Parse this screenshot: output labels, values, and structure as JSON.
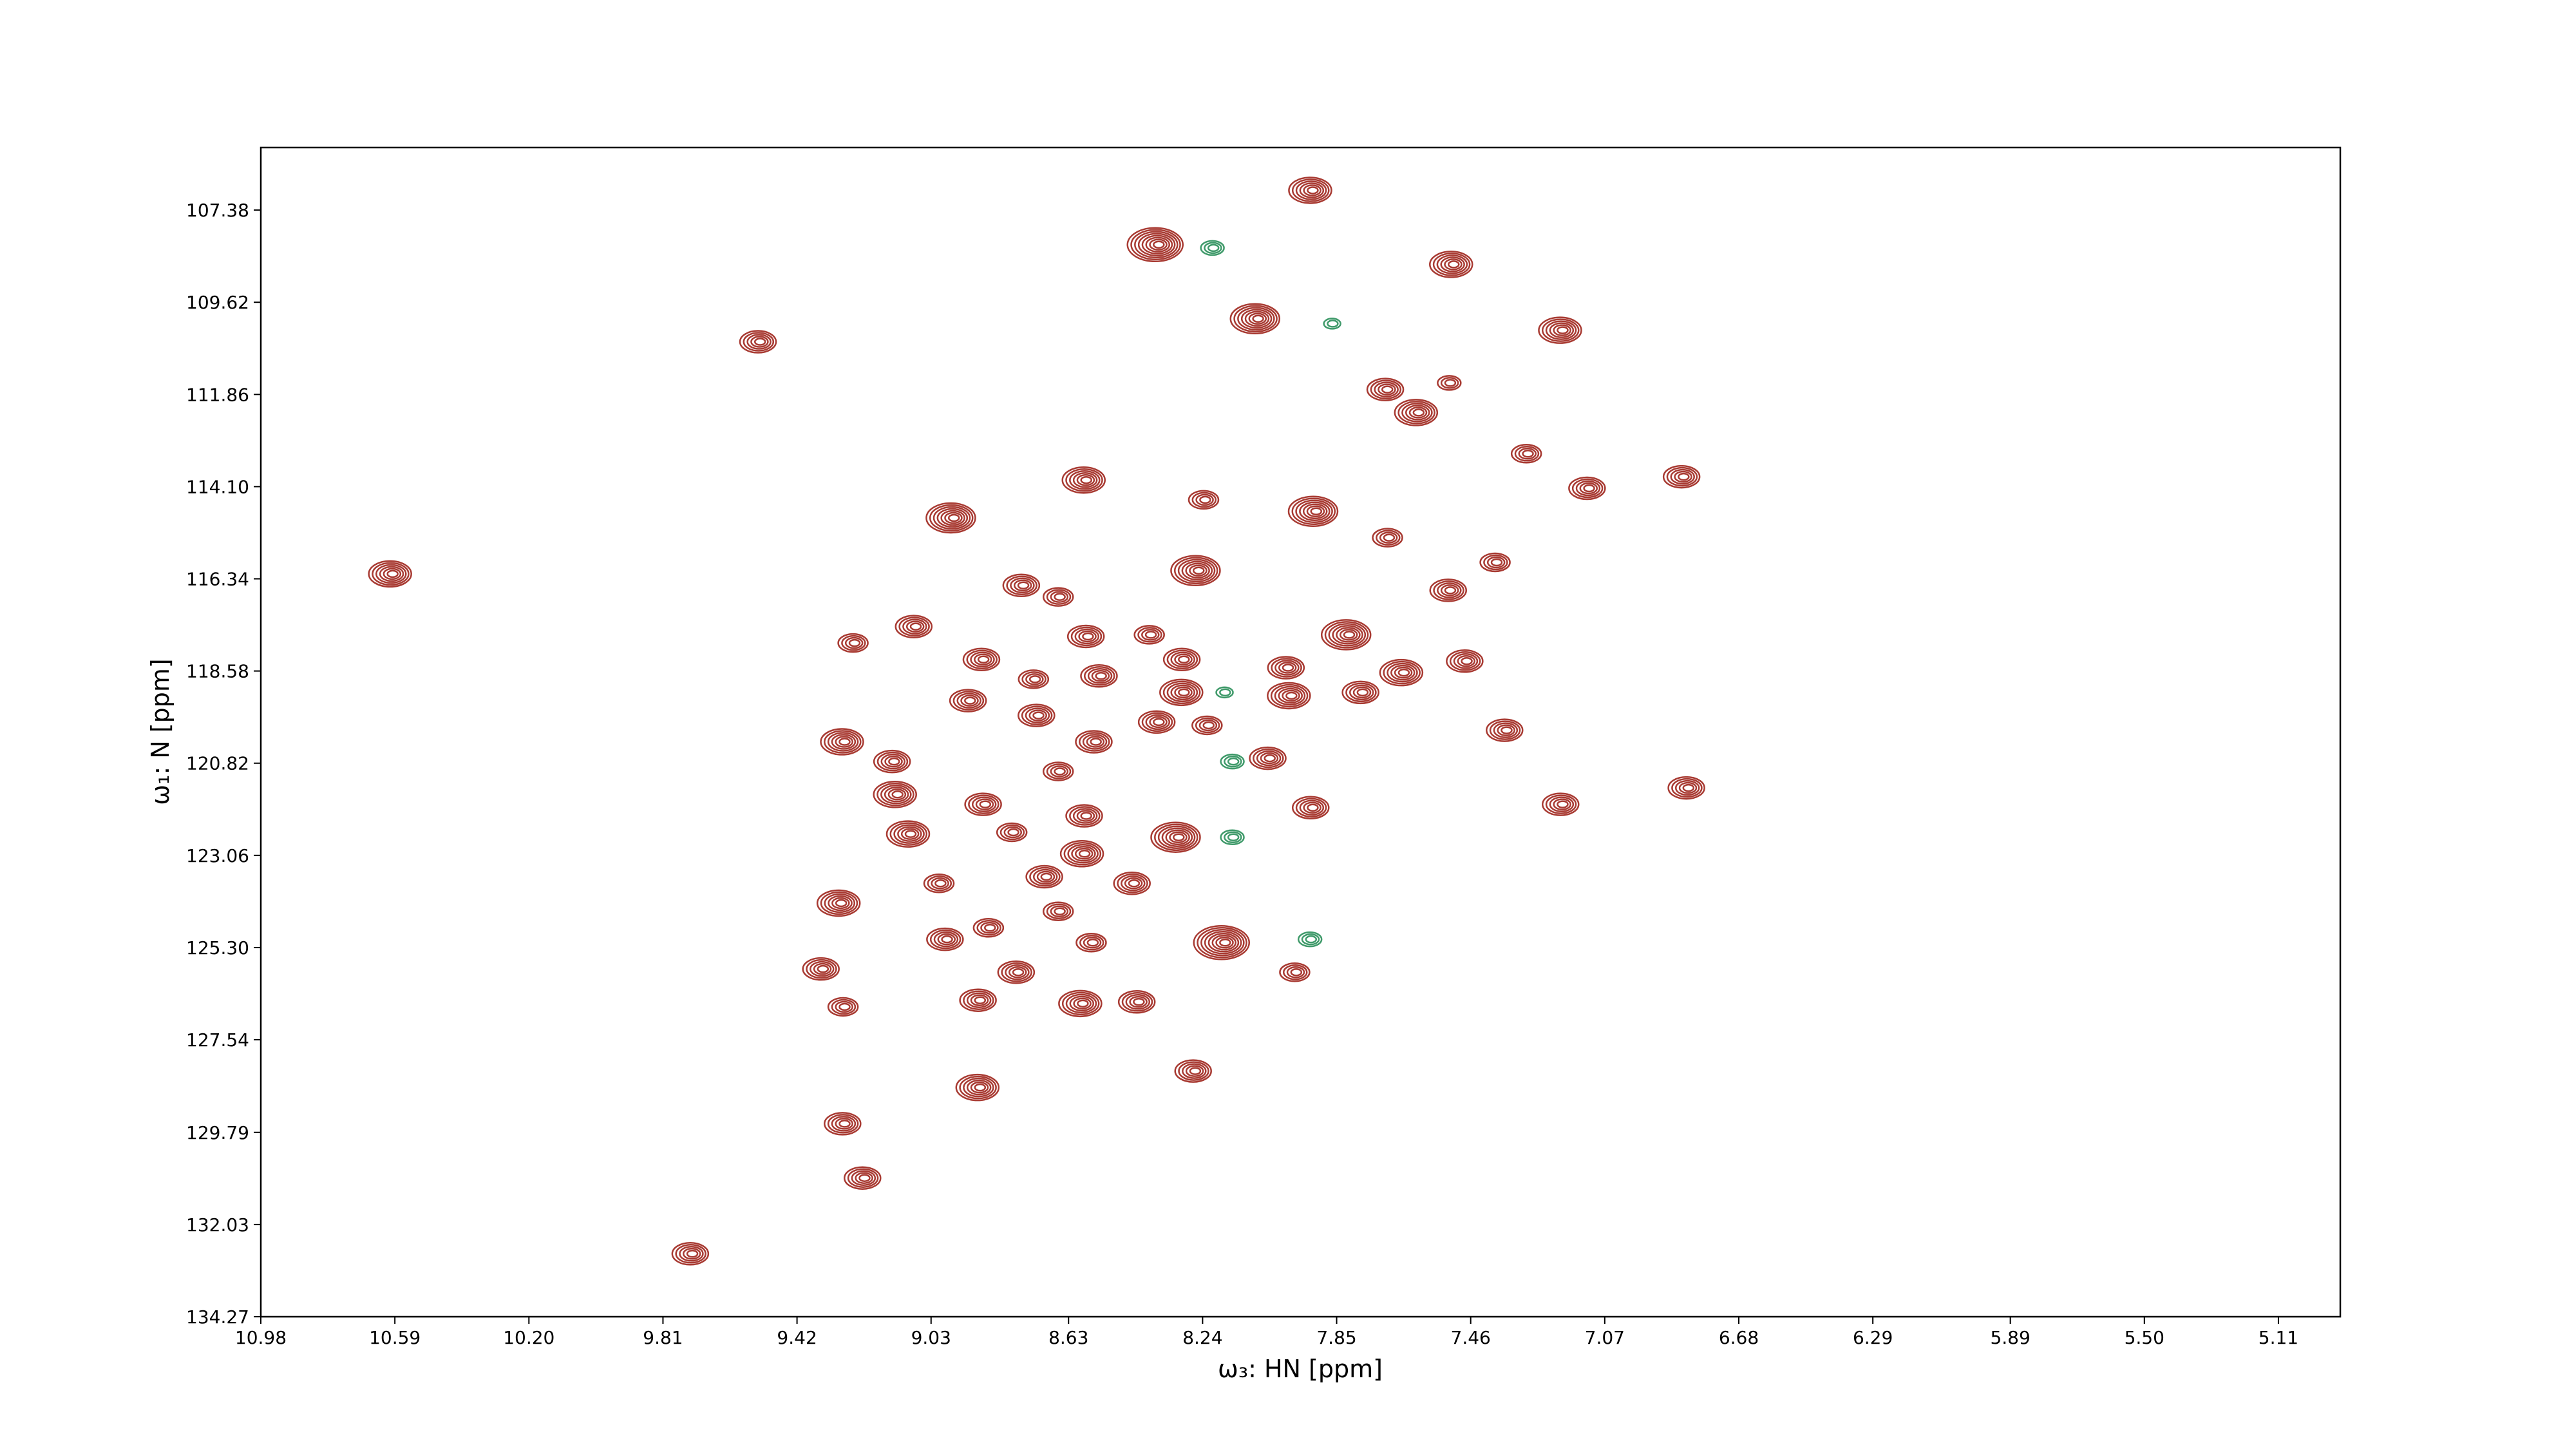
{
  "chart_data": {
    "type": "contour",
    "xlabel": "ω₃: HN [ppm]",
    "ylabel": "ω₁: N [ppm]",
    "xlim": [
      10.98,
      4.93
    ],
    "ylim": [
      134.27,
      105.86
    ],
    "x_inverted": true,
    "y_inverted": true,
    "xticks": [
      {
        "value": 10.98,
        "label": "10.98"
      },
      {
        "value": 10.59,
        "label": "10.59"
      },
      {
        "value": 10.2,
        "label": "10.20"
      },
      {
        "value": 9.81,
        "label": "9.81"
      },
      {
        "value": 9.42,
        "label": "9.42"
      },
      {
        "value": 9.03,
        "label": "9.03"
      },
      {
        "value": 8.63,
        "label": "8.63"
      },
      {
        "value": 8.24,
        "label": "8.24"
      },
      {
        "value": 7.85,
        "label": "7.85"
      },
      {
        "value": 7.46,
        "label": "7.46"
      },
      {
        "value": 7.07,
        "label": "7.07"
      },
      {
        "value": 6.68,
        "label": "6.68"
      },
      {
        "value": 6.29,
        "label": "6.29"
      },
      {
        "value": 5.89,
        "label": "5.89"
      },
      {
        "value": 5.5,
        "label": "5.50"
      },
      {
        "value": 5.11,
        "label": "5.11"
      }
    ],
    "yticks": [
      {
        "value": 107.38,
        "label": "107.38"
      },
      {
        "value": 109.62,
        "label": "109.62"
      },
      {
        "value": 111.86,
        "label": "111.86"
      },
      {
        "value": 114.1,
        "label": "114.10"
      },
      {
        "value": 116.34,
        "label": "116.34"
      },
      {
        "value": 118.58,
        "label": "118.58"
      },
      {
        "value": 120.82,
        "label": "120.82"
      },
      {
        "value": 123.06,
        "label": "123.06"
      },
      {
        "value": 125.3,
        "label": "125.30"
      },
      {
        "value": 127.54,
        "label": "127.54"
      },
      {
        "value": 129.79,
        "label": "129.79"
      },
      {
        "value": 132.03,
        "label": "132.03"
      },
      {
        "value": 134.27,
        "label": "134.27"
      }
    ],
    "series": [
      {
        "color": "#a83a32",
        "x": [
          10.595,
          9.526,
          9.723,
          8.366,
          7.918,
          7.508,
          8.077,
          7.191,
          7.701,
          7.61,
          7.518,
          7.292,
          7.114,
          6.839,
          8.577,
          8.231,
          7.908,
          8.962,
          7.696,
          8.25,
          7.518,
          7.383,
          8.76,
          8.654,
          9.251,
          9.073,
          8.876,
          8.572,
          8.389,
          7.812,
          7.99,
          7.653,
          7.47,
          8.293,
          8.726,
          8.534,
          8.915,
          8.716,
          8.293,
          7.98,
          7.773,
          8.549,
          8.366,
          8.221,
          7.354,
          9.28,
          9.136,
          9.126,
          8.654,
          8.043,
          8.871,
          8.577,
          7.918,
          7.191,
          6.825,
          9.088,
          8.789,
          8.582,
          8.308,
          9.001,
          8.693,
          8.438,
          9.29,
          8.654,
          8.982,
          8.857,
          8.173,
          8.558,
          9.343,
          8.775,
          7.966,
          9.28,
          8.886,
          8.587,
          8.424,
          8.26,
          8.886,
          9.28,
          9.222
        ],
        "y": [
          116.22,
          110.58,
          132.74,
          108.22,
          106.9,
          108.7,
          110.02,
          110.3,
          111.74,
          112.3,
          111.58,
          113.3,
          114.14,
          113.86,
          113.94,
          114.42,
          114.7,
          114.86,
          115.34,
          116.14,
          116.62,
          115.94,
          116.5,
          116.78,
          117.9,
          117.5,
          118.3,
          117.74,
          117.7,
          117.7,
          118.5,
          118.62,
          118.34,
          118.3,
          118.78,
          118.7,
          119.3,
          119.66,
          119.1,
          119.18,
          119.1,
          120.3,
          119.82,
          119.9,
          120.02,
          120.3,
          120.78,
          121.58,
          121.02,
          120.7,
          121.82,
          122.1,
          121.9,
          121.82,
          121.42,
          122.54,
          122.5,
          123.02,
          122.62,
          123.74,
          123.58,
          123.74,
          124.22,
          124.42,
          125.1,
          124.82,
          125.18,
          125.18,
          125.82,
          125.9,
          125.9,
          126.74,
          126.58,
          126.66,
          126.62,
          128.3,
          128.7,
          129.58,
          130.9
        ],
        "levels": [
          6,
          5,
          5,
          8,
          6,
          6,
          7,
          6,
          5,
          6,
          3,
          4,
          5,
          5,
          6,
          4,
          7,
          7,
          4,
          7,
          5,
          4,
          5,
          4,
          4,
          5,
          5,
          5,
          4,
          7,
          5,
          6,
          5,
          5,
          4,
          5,
          5,
          5,
          6,
          6,
          5,
          5,
          5,
          4,
          5,
          6,
          5,
          6,
          4,
          5,
          5,
          5,
          5,
          5,
          5,
          6,
          4,
          6,
          7,
          4,
          5,
          5,
          6,
          4,
          5,
          4,
          8,
          4,
          5,
          5,
          4,
          4,
          5,
          6,
          5,
          5,
          6,
          5,
          5
        ]
      },
      {
        "color": "#3f9a6a",
        "x": [
          8.207,
          7.86,
          7.923,
          8.149,
          8.173,
          8.149
        ],
        "y": [
          108.3,
          110.14,
          125.1,
          122.62,
          119.1,
          120.78
        ],
        "levels": [
          3,
          2,
          3,
          3,
          2,
          3
        ]
      }
    ]
  }
}
